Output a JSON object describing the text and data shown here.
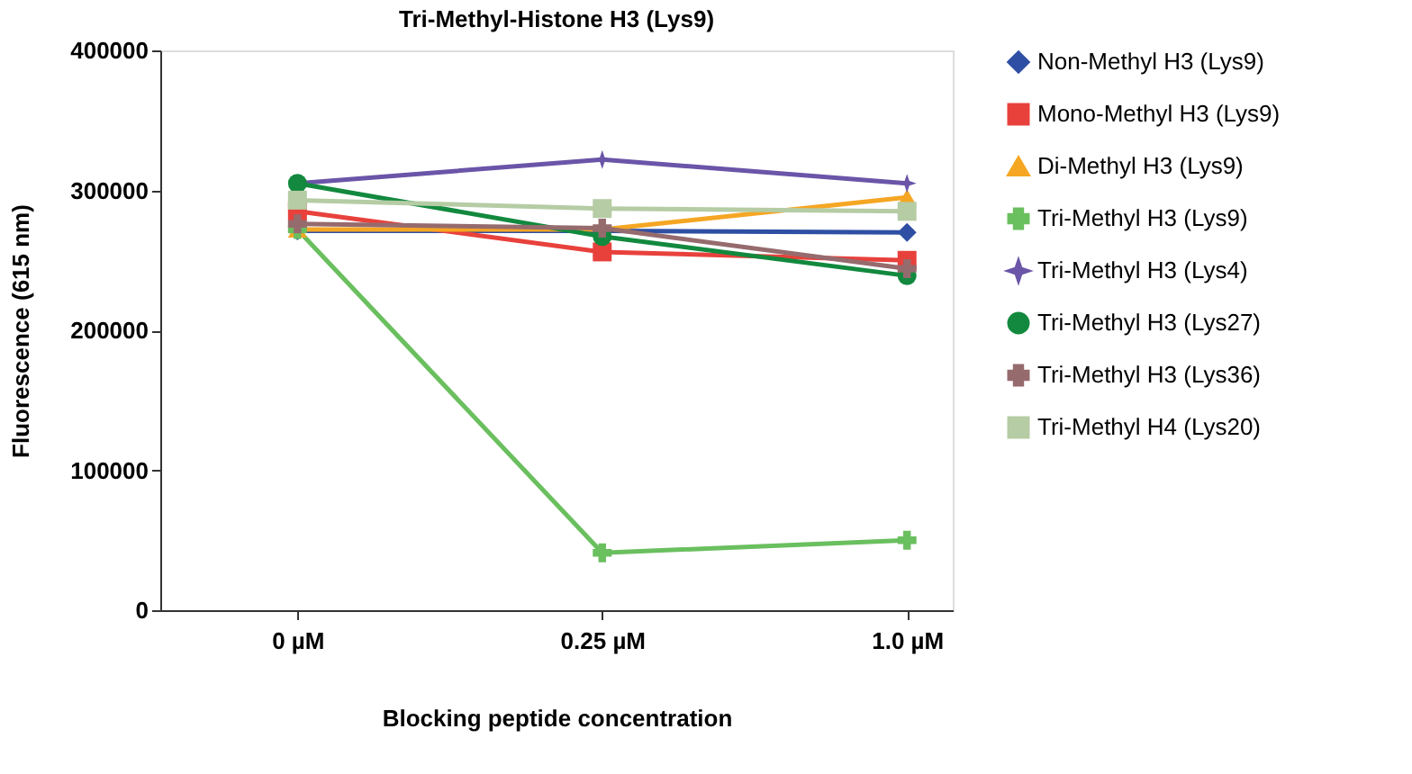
{
  "chart_data": {
    "type": "line",
    "title": "Tri-Methyl-Histone H3 (Lys9)",
    "xlabel": "Blocking peptide concentration",
    "ylabel": "Fluorescence (615 nm)",
    "categories": [
      "0 µM",
      "0.25 µM",
      "1.0 µM"
    ],
    "ylim": [
      0,
      400000
    ],
    "yticks": [
      0,
      100000,
      200000,
      300000,
      400000
    ],
    "grid": false,
    "legend": "right",
    "line_style": "solid",
    "series": [
      {
        "name": "Non-Methyl H3 (Lys9)",
        "color": "#2e4fa3",
        "marker": "diamond",
        "values": [
          271000,
          271000,
          270000
        ]
      },
      {
        "name": "Mono-Methyl H3 (Lys9)",
        "color": "#e8413c",
        "marker": "square",
        "values": [
          285000,
          256000,
          250000
        ]
      },
      {
        "name": "Di-Methyl H3 (Lys9)",
        "color": "#f5a623",
        "marker": "triangle",
        "values": [
          272000,
          272000,
          295000
        ]
      },
      {
        "name": "Tri-Methyl H3 (Lys9)",
        "color": "#6abf5e",
        "marker": "cross",
        "values": [
          272000,
          41000,
          50000
        ]
      },
      {
        "name": "Tri-Methyl H3 (Lys4)",
        "color": "#6a55a8",
        "marker": "star",
        "values": [
          305000,
          322000,
          305000
        ]
      },
      {
        "name": "Tri-Methyl H3 (Lys27)",
        "color": "#12893e",
        "marker": "circle",
        "values": [
          305000,
          267000,
          239000
        ]
      },
      {
        "name": "Tri-Methyl H3 (Lys36)",
        "color": "#966b6e",
        "marker": "cross",
        "values": [
          276000,
          273000,
          244000
        ]
      },
      {
        "name": "Tri-Methyl H4 (Lys20)",
        "color": "#b5cca4",
        "marker": "square",
        "values": [
          293000,
          287000,
          285000
        ]
      }
    ]
  }
}
